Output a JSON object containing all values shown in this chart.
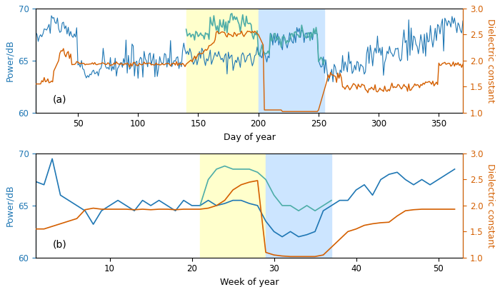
{
  "panel_a": {
    "xlabel": "Day of year",
    "ylabel_left": "Power/dB",
    "ylabel_right": "Dielectric constant",
    "label": "(a)",
    "ylim_left": [
      60,
      70
    ],
    "ylim_right": [
      1.0,
      3.0
    ],
    "yticks_left": [
      60,
      65,
      70
    ],
    "yticks_right": [
      1.0,
      1.5,
      2.0,
      2.5,
      3.0
    ],
    "xlim": [
      15,
      370
    ],
    "xticks": [
      50,
      100,
      150,
      200,
      250,
      300,
      350
    ],
    "yellow_region": [
      140,
      200
    ],
    "blue_region": [
      200,
      255
    ]
  },
  "panel_b": {
    "xlabel": "Week of year",
    "ylabel_left": "Power/dB",
    "ylabel_right": "Dielectric constant",
    "label": "(b)",
    "ylim_left": [
      60,
      70
    ],
    "ylim_right": [
      1.0,
      3.0
    ],
    "yticks_left": [
      60,
      65,
      70
    ],
    "yticks_right": [
      1.0,
      1.5,
      2.0,
      2.5,
      3.0
    ],
    "xlim": [
      1,
      53
    ],
    "xticks": [
      10,
      20,
      30,
      40,
      50
    ],
    "yellow_region": [
      21,
      29
    ],
    "blue_region": [
      29,
      37
    ]
  },
  "colors": {
    "blue_line": "#1f77b4",
    "orange_line": "#d45f00",
    "teal_line": "#4dada8",
    "yellow_bg": "#ffffcc",
    "blue_bg": "#cce5ff"
  }
}
